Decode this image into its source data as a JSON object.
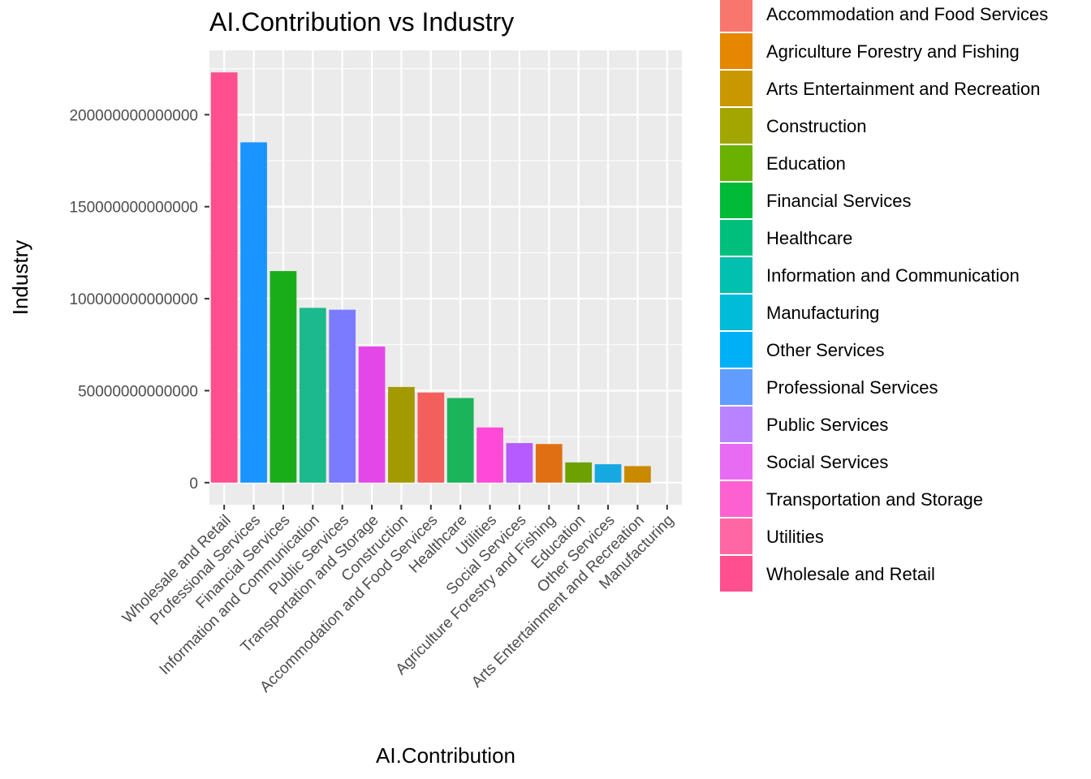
{
  "chart_data": {
    "type": "bar",
    "title": "AI.Contribution vs Industry",
    "xlabel": "AI.Contribution",
    "ylabel": "Industry",
    "ylim": [
      -12000000000000,
      235000000000000
    ],
    "yticks": [
      0,
      50000000000000,
      100000000000000,
      150000000000000,
      200000000000000
    ],
    "ytick_labels": [
      "0",
      "50000000000000",
      "100000000000000",
      "150000000000000",
      "200000000000000"
    ],
    "grid": true,
    "legend_position": "right",
    "categories": [
      "Wholesale and Retail",
      "Professional Services",
      "Financial Services",
      "Information and Communication",
      "Public Services",
      "Transportation and Storage",
      "Construction",
      "Accommodation and Food Services",
      "Healthcare",
      "Utilities",
      "Social Services",
      "Agriculture Forestry and Fishing",
      "Education",
      "Other Services",
      "Arts Entertainment and Recreation",
      "Manufacturing"
    ],
    "values": [
      223000000000000,
      185000000000000,
      115000000000000,
      95000000000000,
      94000000000000,
      74000000000000,
      52000000000000,
      49000000000000,
      46000000000000,
      30000000000000,
      21500000000000,
      21000000000000,
      11000000000000,
      10000000000000,
      9000000000000,
      0
    ],
    "legend": [
      {
        "label": "Accommodation and Food Services",
        "color": "#F8766D"
      },
      {
        "label": "Agriculture Forestry and Fishing",
        "color": "#E58700"
      },
      {
        "label": "Arts Entertainment and Recreation",
        "color": "#C99800"
      },
      {
        "label": "Construction",
        "color": "#A3A500"
      },
      {
        "label": "Education",
        "color": "#6BB100"
      },
      {
        "label": "Financial Services",
        "color": "#00BA38"
      },
      {
        "label": "Healthcare",
        "color": "#00BF7D"
      },
      {
        "label": "Information and Communication",
        "color": "#00C0AF"
      },
      {
        "label": "Manufacturing",
        "color": "#00BCD8"
      },
      {
        "label": "Other Services",
        "color": "#00B0F6"
      },
      {
        "label": "Professional Services",
        "color": "#619CFF"
      },
      {
        "label": "Public Services",
        "color": "#B983FF"
      },
      {
        "label": "Social Services",
        "color": "#E76BF3"
      },
      {
        "label": "Transportation and Storage",
        "color": "#FD61D1"
      },
      {
        "label": "Utilities",
        "color": "#FF67A4"
      },
      {
        "label": "Wholesale and Retail",
        "color": "#FF4F8F"
      }
    ],
    "bar_colors": [
      "#FF4F8F",
      "#1A95FF",
      "#1AAD1A",
      "#1BB98B",
      "#7B7BFF",
      "#E447E8",
      "#A39A00",
      "#F25F5C",
      "#1BB45A",
      "#FF4AD8",
      "#B45CFF",
      "#E06F14",
      "#6BA100",
      "#16A8E0",
      "#C98A00",
      "#17B6B6"
    ],
    "panel_color": "#EBEBEB",
    "grid_color": "#FFFFFF"
  }
}
